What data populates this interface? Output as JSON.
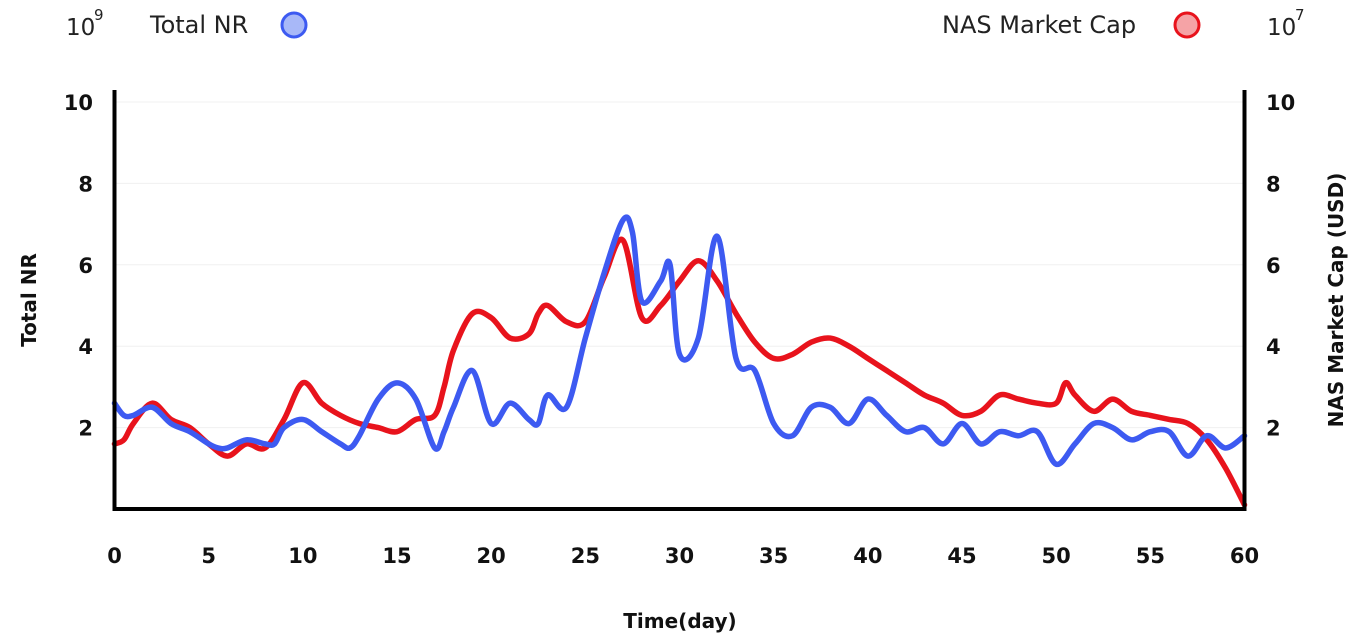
{
  "chart_data": {
    "type": "line",
    "xlabel": "Time(day)",
    "ylabel_left": "Total NR",
    "ylabel_right": "NAS Market Cap (USD)",
    "left_multiplier": {
      "base": "10",
      "exponent": "9"
    },
    "right_multiplier": {
      "base": "10",
      "exponent": "7"
    },
    "xlim": [
      0,
      60
    ],
    "ylim_left": [
      0,
      10
    ],
    "ylim_right": [
      0,
      10
    ],
    "x_ticks": [
      "0",
      "5",
      "10",
      "15",
      "20",
      "25",
      "30",
      "35",
      "40",
      "45",
      "50",
      "55",
      "60"
    ],
    "y_ticks_left": [
      "2",
      "4",
      "6",
      "8",
      "10"
    ],
    "y_ticks_right": [
      "2",
      "4",
      "6",
      "8",
      "10"
    ],
    "grid": true,
    "legend": [
      {
        "label": "Total NR",
        "placement": "top-left"
      },
      {
        "label": "NAS Market Cap",
        "placement": "top-right"
      }
    ],
    "series": [
      {
        "name": "Total NR",
        "axis": "left",
        "color": "#3d5af1",
        "fill": "#a8b8f8",
        "x": [
          0,
          0.5,
          1,
          2,
          3,
          4,
          5,
          5.5,
          6,
          7,
          8,
          8.5,
          9,
          10,
          11,
          12,
          12.5,
          13,
          14,
          15,
          16,
          17,
          17.5,
          18,
          19,
          20,
          21,
          22,
          22.5,
          23,
          24,
          25,
          26,
          27,
          27.5,
          28,
          29,
          29.5,
          30,
          31,
          32,
          33,
          34,
          35,
          36,
          37,
          38,
          39,
          40,
          41,
          42,
          43,
          44,
          45,
          46,
          47,
          48,
          49,
          50,
          51,
          52,
          53,
          54,
          55,
          56,
          57,
          58,
          59,
          60
        ],
        "values": [
          2.6,
          2.3,
          2.3,
          2.5,
          2.1,
          1.9,
          1.6,
          1.5,
          1.5,
          1.7,
          1.6,
          1.6,
          2.0,
          2.2,
          1.9,
          1.6,
          1.5,
          1.8,
          2.7,
          3.1,
          2.7,
          1.5,
          1.9,
          2.5,
          3.4,
          2.1,
          2.6,
          2.2,
          2.1,
          2.8,
          2.5,
          4.2,
          5.8,
          7.1,
          6.8,
          5.1,
          5.6,
          6.0,
          3.8,
          4.2,
          6.7,
          3.7,
          3.4,
          2.1,
          1.8,
          2.5,
          2.5,
          2.1,
          2.7,
          2.3,
          1.9,
          2.0,
          1.6,
          2.1,
          1.6,
          1.9,
          1.8,
          1.9,
          1.1,
          1.6,
          2.1,
          2.0,
          1.7,
          1.9,
          1.9,
          1.3,
          1.8,
          1.5,
          1.8
        ]
      },
      {
        "name": "NAS Market Cap",
        "axis": "right",
        "color": "#e8131c",
        "fill": "#f5a3a6",
        "x": [
          0,
          0.5,
          1,
          2,
          3,
          4,
          5,
          6,
          7,
          8,
          9,
          10,
          11,
          12,
          13,
          14,
          15,
          16,
          17,
          17.5,
          18,
          19,
          20,
          21,
          22,
          22.5,
          23,
          24,
          25,
          26,
          27,
          28,
          29,
          30,
          31,
          32,
          33,
          34,
          35,
          36,
          37,
          38,
          39,
          40,
          41,
          42,
          43,
          44,
          45,
          46,
          47,
          48,
          49,
          50,
          50.5,
          51,
          52,
          53,
          54,
          55,
          56,
          57,
          58,
          59,
          60
        ],
        "values": [
          1.6,
          1.7,
          2.1,
          2.6,
          2.2,
          2.0,
          1.6,
          1.3,
          1.6,
          1.5,
          2.2,
          3.1,
          2.6,
          2.3,
          2.1,
          2.0,
          1.9,
          2.2,
          2.3,
          3.0,
          3.9,
          4.8,
          4.7,
          4.2,
          4.3,
          4.8,
          5.0,
          4.6,
          4.6,
          5.7,
          6.6,
          4.7,
          5.0,
          5.6,
          6.1,
          5.6,
          4.8,
          4.1,
          3.7,
          3.8,
          4.1,
          4.2,
          4.0,
          3.7,
          3.4,
          3.1,
          2.8,
          2.6,
          2.3,
          2.4,
          2.8,
          2.7,
          2.6,
          2.6,
          3.1,
          2.8,
          2.4,
          2.7,
          2.4,
          2.3,
          2.2,
          2.1,
          1.7,
          1.0,
          0.1
        ]
      }
    ]
  }
}
